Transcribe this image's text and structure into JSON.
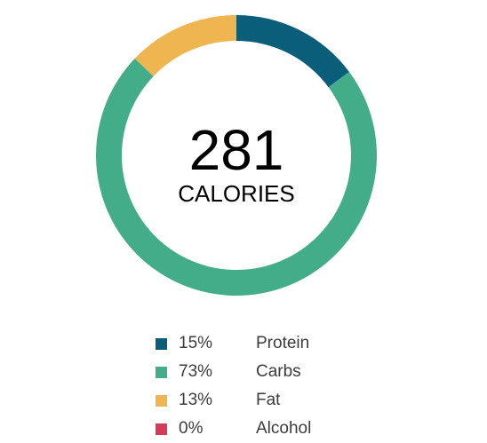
{
  "summary": {
    "calories_value": "281",
    "calories_label": "CALORIES"
  },
  "chart_data": {
    "type": "pie",
    "style": "donut",
    "legend_position": "bottom",
    "center_text": [
      "281",
      "CALORIES"
    ],
    "categories": [
      "Protein",
      "Carbs",
      "Fat",
      "Alcohol"
    ],
    "values": [
      15,
      73,
      13,
      0
    ],
    "colors": [
      "#0b5e7a",
      "#43ad89",
      "#efb550",
      "#d63b55"
    ]
  },
  "legend": [
    {
      "pct": "15%",
      "name": "Protein"
    },
    {
      "pct": "73%",
      "name": "Carbs"
    },
    {
      "pct": "13%",
      "name": "Fat"
    },
    {
      "pct": "0%",
      "name": "Alcohol"
    }
  ]
}
